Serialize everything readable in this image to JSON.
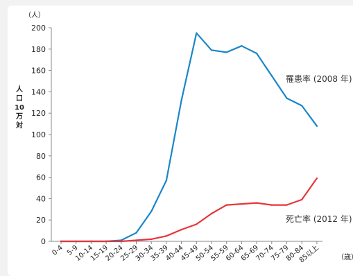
{
  "chart_data": {
    "type": "line",
    "y_unit": "（人）",
    "ylabel_lines": [
      "人",
      "口",
      "10",
      "万",
      "対"
    ],
    "xlabel": "（歳）",
    "ylim": [
      0,
      200
    ],
    "y_ticks": [
      0,
      20,
      40,
      60,
      80,
      100,
      120,
      140,
      160,
      180,
      200
    ],
    "categories": [
      "0-4",
      "5-9",
      "10-14",
      "15-19",
      "20-24",
      "25-29",
      "30-34",
      "35-39",
      "40-44",
      "45-49",
      "50-54",
      "55-59",
      "60-64",
      "65-69",
      "70-74",
      "75-79",
      "80-84",
      "85以上"
    ],
    "series": [
      {
        "name": "罹患率 (2008 年)",
        "color": "#1a86c8",
        "values": [
          0,
          0,
          0,
          0,
          1,
          8,
          28,
          57,
          132,
          195,
          179,
          177,
          183,
          176,
          155,
          134,
          127,
          108
        ]
      },
      {
        "name": "死亡率 (2012 年)",
        "color": "#e8343b",
        "values": [
          0,
          0,
          0,
          0,
          0,
          1,
          2,
          5,
          11,
          16,
          26,
          34,
          35,
          36,
          34,
          34,
          39,
          59
        ]
      }
    ]
  }
}
